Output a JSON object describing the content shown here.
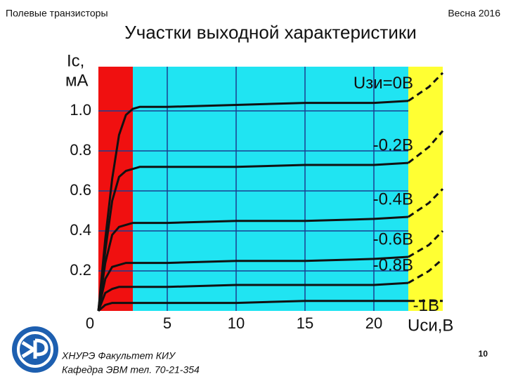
{
  "header": {
    "left": "Полевые  транзисторы",
    "right": "Весна 2016"
  },
  "footer": {
    "line1": "ХНУРЭ Факультет КИУ",
    "line2": "Кафедра ЭВМ   тел. 70-21-354",
    "page": "10"
  },
  "chart_data": {
    "type": "line",
    "title": "Участки выходной характеристики",
    "y_label": [
      "Iс,",
      "мА"
    ],
    "x_label": "Uси,В",
    "x": [
      0,
      0.5,
      1,
      1.5,
      2,
      2.5,
      3,
      5,
      10,
      15,
      20,
      22.5
    ],
    "breakdown_x": [
      22.5,
      24,
      25
    ],
    "xlim": [
      0,
      25
    ],
    "xticks": [
      0,
      5,
      10,
      15,
      20
    ],
    "ylim": [
      0,
      1.2
    ],
    "yticks": [
      0,
      0.2,
      0.4,
      0.6,
      0.8,
      {
        "value": 1,
        "label": "1.0"
      }
    ],
    "grid": true,
    "grid_color": "#1b3f8f",
    "line_color": "#111111",
    "regions": [
      {
        "from": 0,
        "to": 2.5,
        "color": "#f01010"
      },
      {
        "from": 2.5,
        "to": 22.5,
        "color": "#20e4f2"
      },
      {
        "from": 22.5,
        "to": 25,
        "color": "#ffff33"
      }
    ],
    "series": [
      {
        "name": "Uзи=0В",
        "values": [
          0,
          0.36,
          0.66,
          0.88,
          0.98,
          1.01,
          1.02,
          1.02,
          1.03,
          1.04,
          1.04,
          1.05
        ],
        "breakdown_values": [
          1.05,
          1.12,
          1.19
        ]
      },
      {
        "name": "-0.2В",
        "values": [
          0,
          0.3,
          0.55,
          0.67,
          0.7,
          0.71,
          0.72,
          0.72,
          0.72,
          0.73,
          0.73,
          0.74
        ],
        "breakdown_values": [
          0.74,
          0.82,
          0.9
        ]
      },
      {
        "name": "-0.4В",
        "values": [
          0,
          0.24,
          0.38,
          0.42,
          0.43,
          0.44,
          0.44,
          0.44,
          0.45,
          0.45,
          0.46,
          0.47
        ],
        "breakdown_values": [
          0.47,
          0.54,
          0.61
        ]
      },
      {
        "name": "-0.6В",
        "values": [
          0,
          0.16,
          0.22,
          0.23,
          0.24,
          0.24,
          0.24,
          0.24,
          0.25,
          0.25,
          0.26,
          0.27
        ],
        "breakdown_values": [
          0.27,
          0.33,
          0.4
        ]
      },
      {
        "name": "-0.8В",
        "values": [
          0,
          0.09,
          0.11,
          0.12,
          0.12,
          0.12,
          0.12,
          0.12,
          0.13,
          0.13,
          0.13,
          0.14
        ],
        "breakdown_values": [
          0.14,
          0.2,
          0.26
        ]
      },
      {
        "name": "-1В",
        "values": [
          0,
          0.03,
          0.04,
          0.04,
          0.04,
          0.04,
          0.04,
          0.04,
          0.04,
          0.05,
          0.05,
          0.05
        ],
        "breakdown_values": [
          0.05,
          0.05,
          0.05
        ]
      }
    ]
  }
}
